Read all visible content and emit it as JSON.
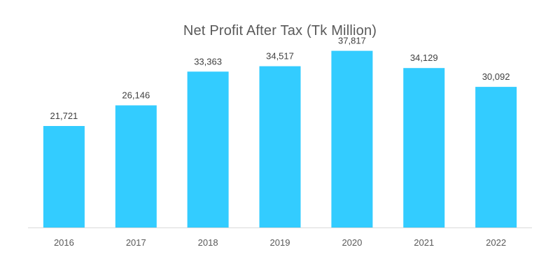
{
  "chart_data": {
    "type": "bar",
    "title": "Net Profit After Tax (Tk Million)",
    "xlabel": "",
    "ylabel": "",
    "categories": [
      "2016",
      "2017",
      "2018",
      "2019",
      "2020",
      "2021",
      "2022"
    ],
    "values": [
      21721,
      26146,
      33363,
      34517,
      37817,
      34129,
      30092
    ],
    "value_labels": [
      "21,721",
      "26,146",
      "33,363",
      "34,517",
      "37,817",
      "34,129",
      "30,092"
    ],
    "ylim": [
      0,
      40000
    ],
    "grid": false,
    "legend": "none",
    "bar_color": "#33CCFF",
    "axis_color": "#D9D9D9"
  }
}
